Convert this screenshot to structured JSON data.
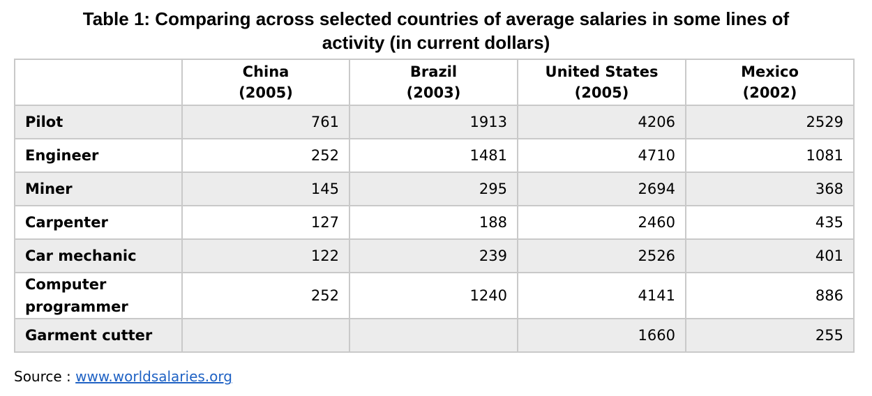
{
  "title_line1": "Table 1: Comparing across selected countries of average salaries in some lines of",
  "title_line2": "activity (in current dollars)",
  "columns": [
    {
      "country": "China",
      "year": "(2005)"
    },
    {
      "country": "Brazil",
      "year": "(2003)"
    },
    {
      "country": "United States",
      "year": "(2005)"
    },
    {
      "country": "Mexico",
      "year": "(2002)"
    }
  ],
  "rows": [
    {
      "label": "Pilot",
      "values": [
        "761",
        "1913",
        "4206",
        "2529"
      ]
    },
    {
      "label": "Engineer",
      "values": [
        "252",
        "1481",
        "4710",
        "1081"
      ]
    },
    {
      "label": "Miner",
      "values": [
        "145",
        "295",
        "2694",
        "368"
      ]
    },
    {
      "label": "Carpenter",
      "values": [
        "127",
        "188",
        "2460",
        "435"
      ]
    },
    {
      "label": "Car mechanic",
      "values": [
        "122",
        "239",
        "2526",
        "401"
      ]
    },
    {
      "label_line1": "Computer",
      "label_line2": "programmer",
      "values": [
        "252",
        "1240",
        "4141",
        "886"
      ]
    },
    {
      "label": "Garment cutter",
      "values": [
        "",
        "",
        "1660",
        "255"
      ]
    }
  ],
  "source_prefix": "Source : ",
  "source_link": "www.worldsalaries.org"
}
